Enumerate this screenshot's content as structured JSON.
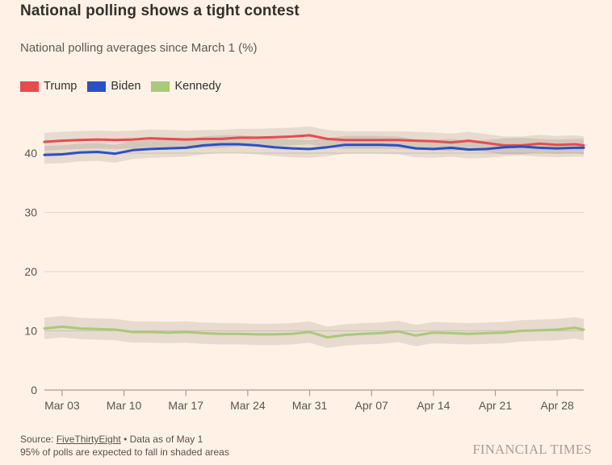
{
  "page": {
    "background": "#fff1e5"
  },
  "header": {
    "title": "National polling shows a tight contest",
    "subtitle": "National polling averages since March 1 (%)"
  },
  "legend": [
    {
      "label": "Trump",
      "color": "#e64c4c"
    },
    {
      "label": "Biden",
      "color": "#2b50c6"
    },
    {
      "label": "Kennedy",
      "color": "#a8c97a"
    }
  ],
  "footer": {
    "source_prefix": "Source: ",
    "source_link": "FiveThirtyEight",
    "source_suffix": " • Data as of May 1",
    "note": "95% of polls are expected to fall in shaded areas",
    "brand": "FINANCIAL TIMES"
  },
  "chart_data": {
    "type": "line",
    "title": "National polling averages since March 1 (%)",
    "grid": true,
    "legend_position": "top",
    "band_note": "95% of polls expected to fall in shaded areas",
    "ylim": [
      0,
      45
    ],
    "y_ticks": [
      0,
      10,
      20,
      30,
      40
    ],
    "x_range_days": [
      0,
      61
    ],
    "x_tick_labels": [
      "Mar 03",
      "Mar 10",
      "Mar 17",
      "Mar 24",
      "Mar 31",
      "Apr 07",
      "Apr 14",
      "Apr 21",
      "Apr 28"
    ],
    "x_tick_days": [
      2,
      9,
      16,
      23,
      30,
      37,
      44,
      51,
      58
    ],
    "dates": [
      "Mar 01",
      "Mar 03",
      "Mar 05",
      "Mar 07",
      "Mar 09",
      "Mar 11",
      "Mar 13",
      "Mar 15",
      "Mar 17",
      "Mar 19",
      "Mar 21",
      "Mar 23",
      "Mar 25",
      "Mar 27",
      "Mar 29",
      "Mar 31",
      "Apr 02",
      "Apr 04",
      "Apr 06",
      "Apr 08",
      "Apr 10",
      "Apr 12",
      "Apr 14",
      "Apr 16",
      "Apr 18",
      "Apr 20",
      "Apr 22",
      "Apr 24",
      "Apr 26",
      "Apr 28",
      "Apr 30",
      "May 01"
    ],
    "days": [
      0,
      2,
      4,
      6,
      8,
      10,
      12,
      14,
      16,
      18,
      20,
      22,
      24,
      26,
      28,
      30,
      32,
      34,
      36,
      38,
      40,
      42,
      44,
      46,
      48,
      50,
      52,
      54,
      56,
      58,
      60,
      61
    ],
    "series": [
      {
        "name": "Trump",
        "color": "#e64c4c",
        "band_halfwidth": 1.5,
        "values": [
          41.9,
          42.1,
          42.2,
          42.3,
          42.2,
          42.3,
          42.5,
          42.4,
          42.3,
          42.4,
          42.4,
          42.6,
          42.6,
          42.7,
          42.8,
          43.0,
          42.4,
          42.2,
          42.2,
          42.2,
          42.2,
          42.1,
          42.0,
          41.8,
          42.1,
          41.7,
          41.3,
          41.3,
          41.6,
          41.4,
          41.5,
          41.3
        ]
      },
      {
        "name": "Biden",
        "color": "#2b50c6",
        "band_halfwidth": 1.5,
        "values": [
          39.7,
          39.8,
          40.1,
          40.2,
          39.9,
          40.5,
          40.7,
          40.8,
          40.9,
          41.3,
          41.5,
          41.5,
          41.3,
          41.0,
          40.8,
          40.7,
          41.0,
          41.4,
          41.4,
          41.4,
          41.3,
          40.8,
          40.7,
          40.9,
          40.6,
          40.7,
          41.0,
          41.1,
          40.9,
          40.8,
          40.9,
          40.9
        ]
      },
      {
        "name": "Kennedy",
        "color": "#a8c97a",
        "band_halfwidth": 1.8,
        "values": [
          10.4,
          10.7,
          10.4,
          10.3,
          10.2,
          9.8,
          9.8,
          9.7,
          9.8,
          9.6,
          9.5,
          9.5,
          9.4,
          9.4,
          9.5,
          9.8,
          8.9,
          9.3,
          9.5,
          9.6,
          9.9,
          9.2,
          9.7,
          9.6,
          9.5,
          9.6,
          9.7,
          10.0,
          10.1,
          10.2,
          10.5,
          10.2
        ]
      }
    ],
    "colors": {
      "band": "#6b6258",
      "band_opacity": 0.16,
      "gridline": "#e2d4c6",
      "axis": "#a79d92",
      "tick_label": "#5b5550"
    }
  }
}
